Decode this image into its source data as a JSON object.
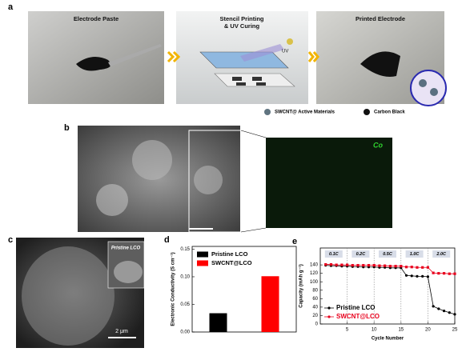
{
  "panel_a": {
    "label": "a",
    "steps": [
      [
        "Electrode Paste"
      ],
      [
        "Stencil Printing",
        "& UV Curing"
      ],
      [
        "Printed Electrode"
      ]
    ],
    "uv": "UV",
    "legend": [
      "SWCNT@ Active Materials",
      "Carbon Black"
    ]
  },
  "panel_b": {
    "label": "b",
    "map_label": "Co"
  },
  "panel_c": {
    "label": "c",
    "inset_label": "Pristine LCO",
    "scale_bar": "2 μm"
  },
  "chart_data": [
    {
      "type": "bar",
      "label": "d",
      "y_label": "Electronic Conductivity (S cm⁻¹)",
      "series": [
        {
          "name": "Pristine LCO",
          "color": "#000000",
          "values": [
            0.034
          ]
        },
        {
          "name": "SWCNT@LCO",
          "color": "#ff0000",
          "values": [
            0.101
          ]
        }
      ],
      "ylim": [
        0,
        0.155
      ],
      "yticks": [
        {
          "value": 0,
          "label": "0.00"
        },
        {
          "value": 0.05,
          "label": "0.05"
        },
        {
          "value": 0.1,
          "label": "0.10"
        },
        {
          "value": 0.15,
          "label": "0.15"
        }
      ],
      "legend": "upper left"
    },
    {
      "type": "line",
      "label": "e",
      "x_label": "Cycle Number",
      "y_label": "Capacity (mAh g⁻¹)",
      "x": [
        1,
        2,
        3,
        4,
        5,
        6,
        7,
        8,
        9,
        10,
        11,
        12,
        13,
        14,
        15,
        16,
        17,
        18,
        19,
        20,
        21,
        22,
        23,
        24,
        25
      ],
      "series": [
        {
          "name": "Pristine LCO",
          "color": "#000000",
          "marker": "circle",
          "values": [
            139,
            138,
            138,
            137,
            137,
            136,
            136,
            135,
            135,
            135,
            134,
            134,
            133,
            133,
            133,
            115,
            114,
            113,
            113,
            112,
            42,
            36,
            31,
            27,
            23
          ]
        },
        {
          "name": "SWCNT@LCO",
          "color": "#e8001c",
          "marker": "square",
          "values": [
            141,
            141,
            140,
            140,
            140,
            139,
            139,
            139,
            139,
            139,
            138,
            138,
            137,
            137,
            137,
            135,
            135,
            134,
            134,
            134,
            121,
            120,
            120,
            119,
            119
          ]
        }
      ],
      "annotations": [
        "0.1C",
        "0.2C",
        "0.5C",
        "1.0C",
        "2.0C"
      ],
      "xlim": [
        0,
        25
      ],
      "xticks": [
        5,
        10,
        15,
        20,
        25
      ],
      "ylim": [
        0,
        180
      ],
      "yticks": [
        0,
        20,
        40,
        60,
        80,
        100,
        120,
        140
      ],
      "legend": "lower left"
    }
  ]
}
